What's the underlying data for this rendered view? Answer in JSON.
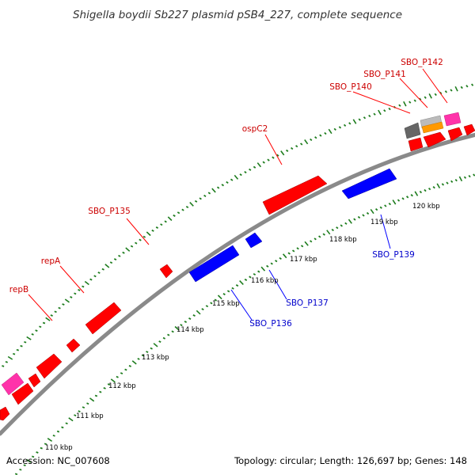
{
  "title": "Shigella boydii Sb227 plasmid pSB4_227, complete sequence",
  "footer": {
    "accession": "Accession: NC_007608",
    "summary": "Topology: circular; Length: 126,697 bp; Genes: 148"
  },
  "colors": {
    "backbone": "#8a8a8a",
    "tick": "#1e7d1e",
    "forward_gene": "#ff0000",
    "reverse_gene": "#0000ff",
    "forward_label": "#cc0000",
    "reverse_label": "#0000cc",
    "pink_gene": "#ff33aa",
    "orange_gene": "#ff9900",
    "gray_gene": "#666666",
    "lightgray_gene": "#bbbbbb"
  },
  "ticks": [
    {
      "label": "110 kbp"
    },
    {
      "label": "111 kbp"
    },
    {
      "label": "112 kbp"
    },
    {
      "label": "113 kbp"
    },
    {
      "label": "114 kbp"
    },
    {
      "label": "115 kbp"
    },
    {
      "label": "116 kbp"
    },
    {
      "label": "117 kbp"
    },
    {
      "label": "118 kbp"
    },
    {
      "label": "119 kbp"
    },
    {
      "label": "120 kbp"
    }
  ],
  "forward_labels": [
    {
      "text": "repB"
    },
    {
      "text": "repA"
    },
    {
      "text": "SBO_P135"
    },
    {
      "text": "ospC2"
    },
    {
      "text": "SBO_P140"
    },
    {
      "text": "SBO_P141"
    },
    {
      "text": "SBO_P142"
    }
  ],
  "reverse_labels": [
    {
      "text": "SBO_P136"
    },
    {
      "text": "SBO_P137"
    },
    {
      "text": "SBO_P139"
    }
  ]
}
